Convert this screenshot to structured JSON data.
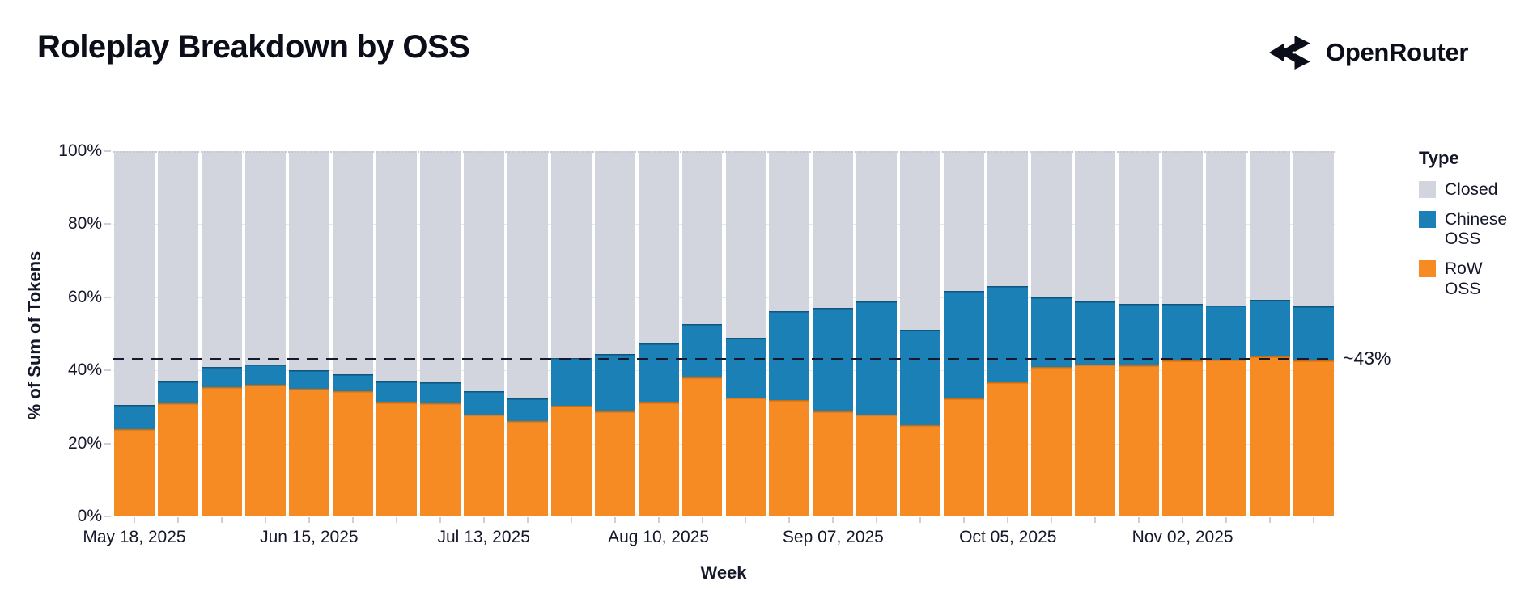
{
  "header": {
    "title": "Roleplay Breakdown by OSS",
    "brand": "OpenRouter"
  },
  "chart_data": {
    "type": "bar",
    "stacked": true,
    "title": "Roleplay Breakdown by OSS",
    "xlabel": "Week",
    "ylabel": "% of Sum of Tokens",
    "ylim": [
      0,
      100
    ],
    "y_tick_labels": [
      "0%",
      "20%",
      "40%",
      "60%",
      "80%",
      "100%"
    ],
    "grid": true,
    "categories": [
      "May 18, 2025",
      "May 25, 2025",
      "Jun 01, 2025",
      "Jun 08, 2025",
      "Jun 15, 2025",
      "Jun 22, 2025",
      "Jun 29, 2025",
      "Jul 06, 2025",
      "Jul 13, 2025",
      "Jul 20, 2025",
      "Jul 27, 2025",
      "Aug 03, 2025",
      "Aug 10, 2025",
      "Aug 17, 2025",
      "Aug 24, 2025",
      "Aug 31, 2025",
      "Sep 07, 2025",
      "Sep 14, 2025",
      "Sep 21, 2025",
      "Sep 28, 2025",
      "Oct 05, 2025",
      "Oct 12, 2025",
      "Oct 19, 2025",
      "Oct 26, 2025",
      "Nov 02, 2025",
      "Nov 09, 2025",
      "Nov 16, 2025",
      "Nov 23, 2025"
    ],
    "x_axis_label_indices": [
      0,
      4,
      8,
      12,
      16,
      20,
      24
    ],
    "x_axis_labels_shown": [
      "May 18, 2025",
      "Jun 15, 2025",
      "Jul 13, 2025",
      "Aug 10, 2025",
      "Sep 07, 2025",
      "Oct 05, 2025",
      "Nov 02, 2025"
    ],
    "series": [
      {
        "name": "RoW OSS",
        "color": "#f58b22",
        "values": [
          24.0,
          31.0,
          35.5,
          36.0,
          35.0,
          34.3,
          31.2,
          31.0,
          27.8,
          26.2,
          30.2,
          28.7,
          31.2,
          38.0,
          32.6,
          31.9,
          28.7,
          27.8,
          25.0,
          32.3,
          36.8,
          41.0,
          41.7,
          41.3,
          42.6,
          43.0,
          43.7,
          42.8
        ]
      },
      {
        "name": "Chinese OSS",
        "color": "#1a80b6",
        "values": [
          6.5,
          6.0,
          5.5,
          5.5,
          5.0,
          4.7,
          5.8,
          5.7,
          6.5,
          6.2,
          13.1,
          15.7,
          16.2,
          14.6,
          16.4,
          24.2,
          28.3,
          31.1,
          26.1,
          29.5,
          26.2,
          19.0,
          17.1,
          16.8,
          15.6,
          14.7,
          15.7,
          14.8
        ]
      },
      {
        "name": "Closed",
        "color": "#d2d4de",
        "values": "remainder-to-100"
      }
    ],
    "annotation": {
      "label": "~43%",
      "value": 43.2
    },
    "legend": {
      "title": "Type",
      "position": "right",
      "entries": [
        {
          "label": "Closed",
          "color": "#d2d4de"
        },
        {
          "label": "Chinese OSS",
          "color": "#1a80b6"
        },
        {
          "label": "RoW OSS",
          "color": "#f58b22"
        }
      ]
    }
  }
}
